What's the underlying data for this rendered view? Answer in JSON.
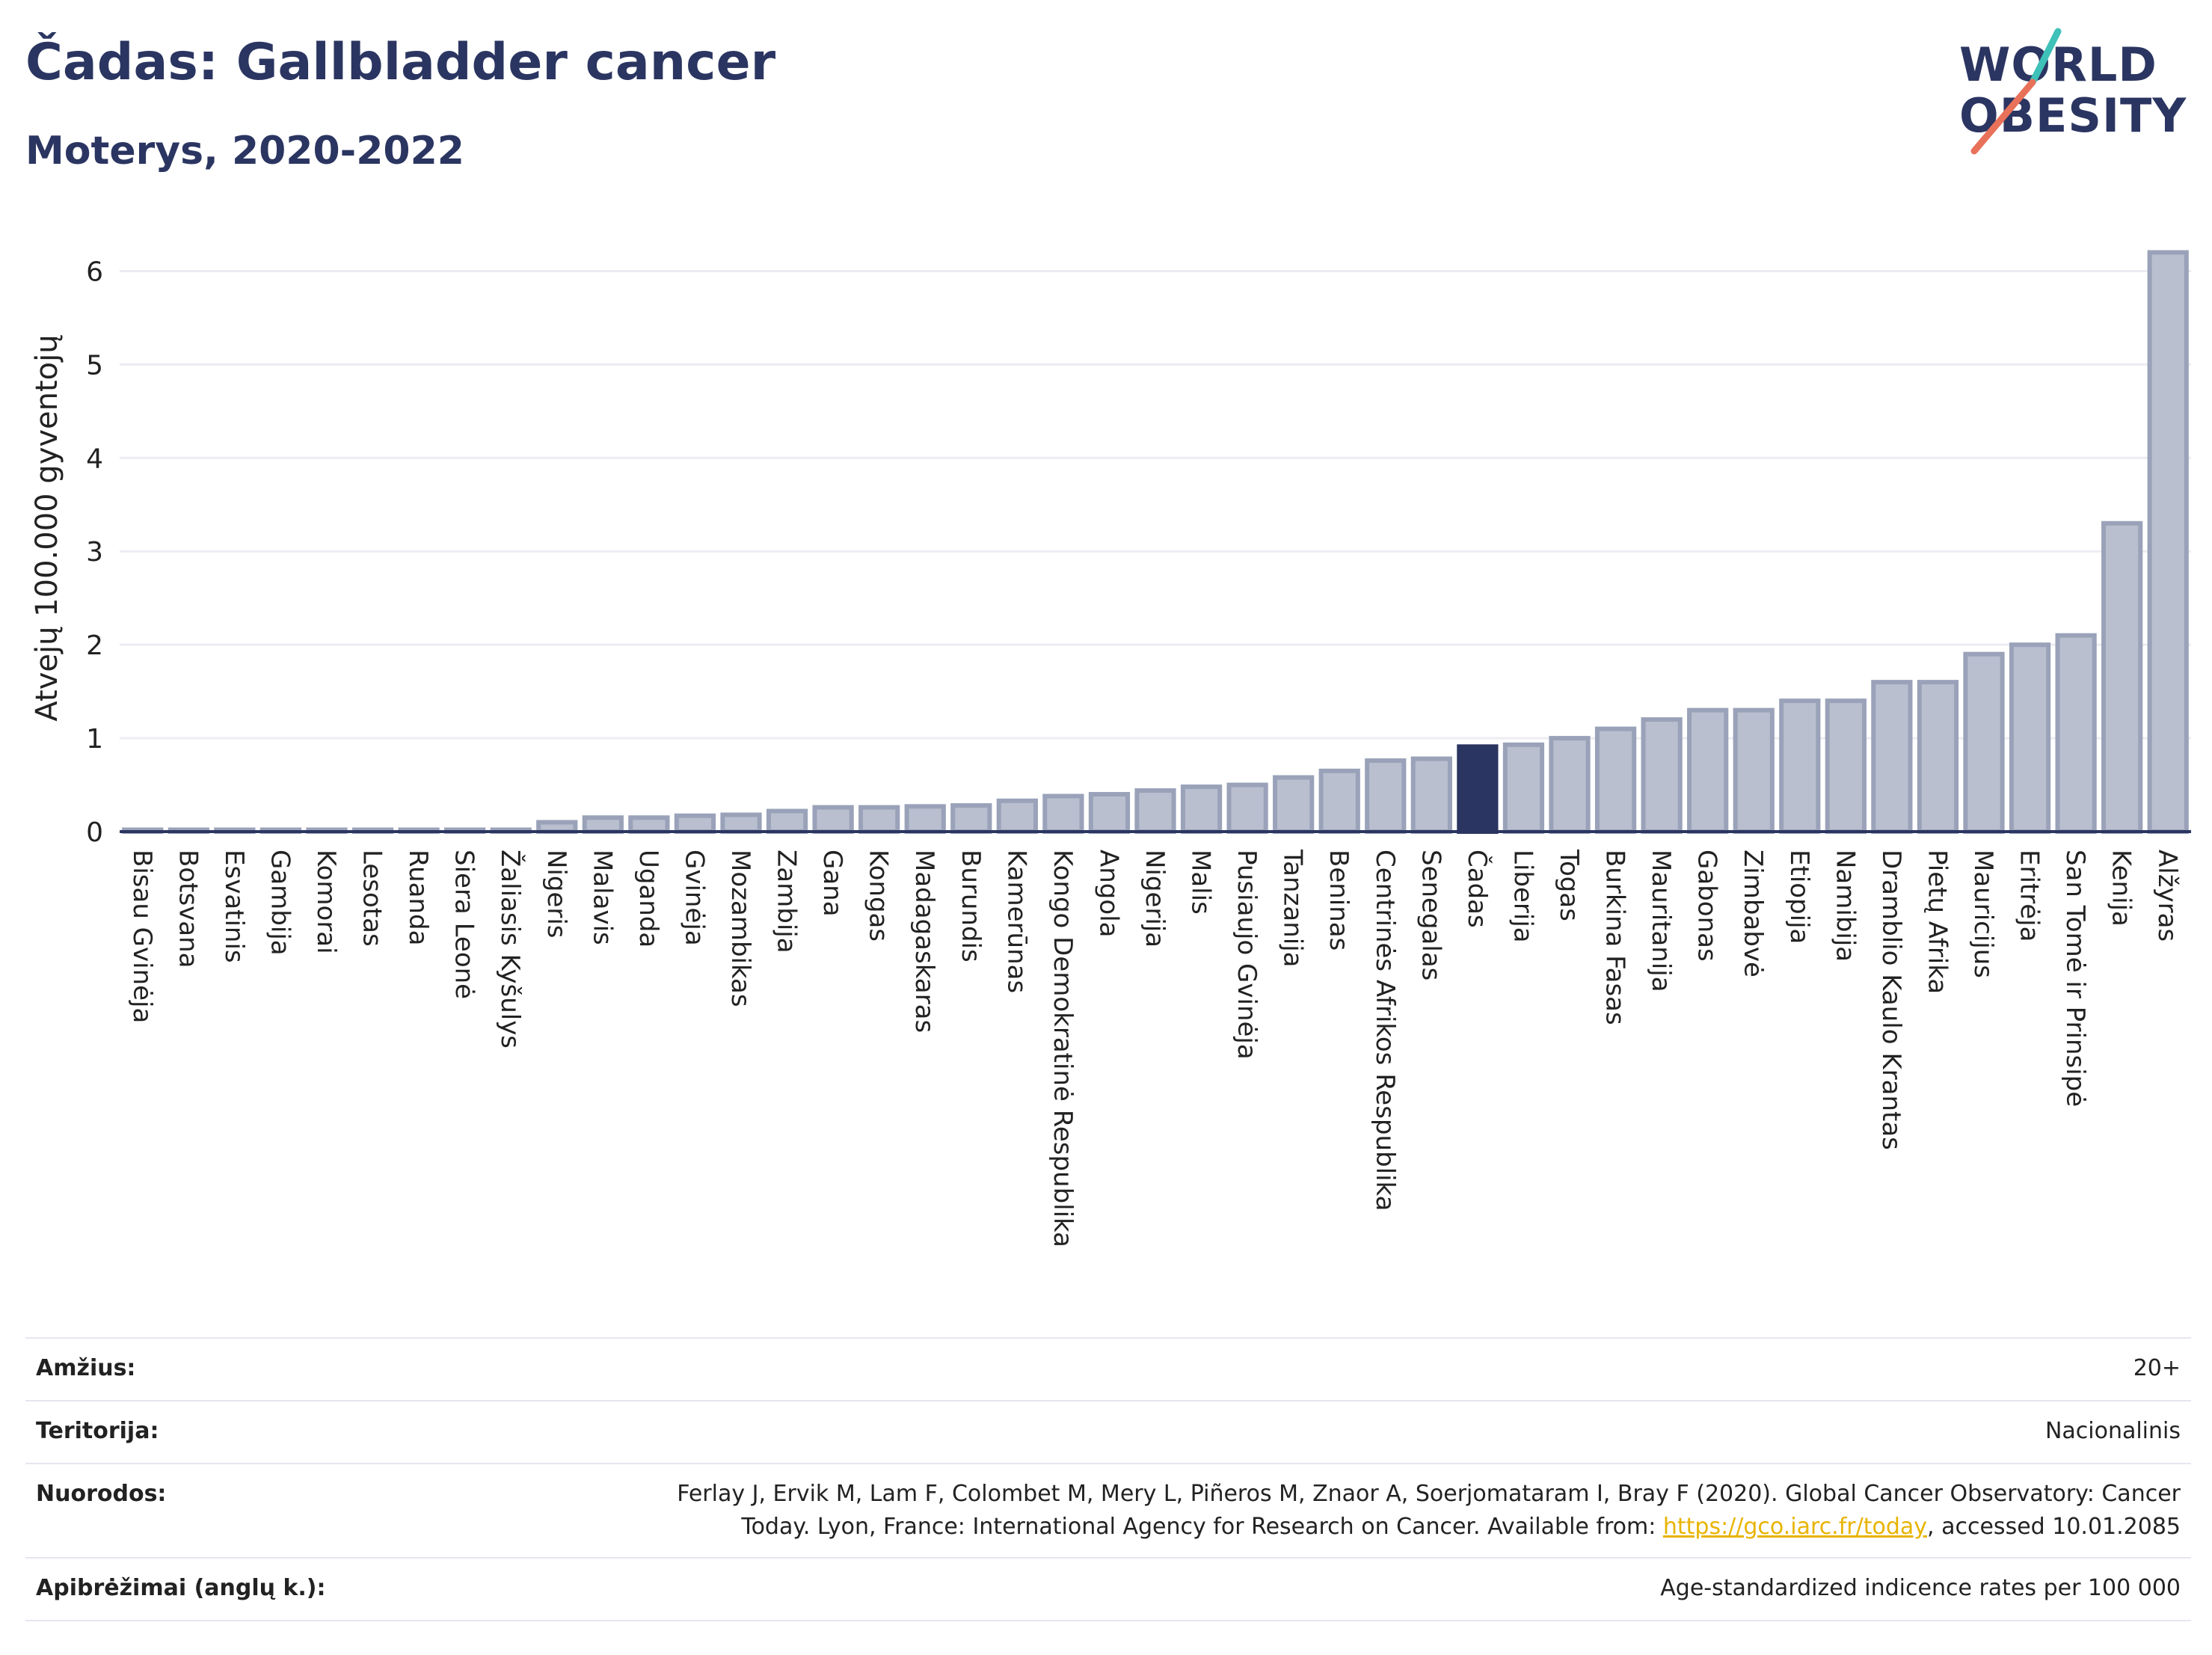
{
  "title": "Čadas: Gallbladder cancer",
  "subtitle": "Moterys, 2020-2022",
  "logo": {
    "line1": "WORLD",
    "line2": "OBESITY",
    "slash_colors": [
      "#3ec1b8",
      "#e8715a"
    ]
  },
  "colors": {
    "bar": "#b9bfcf",
    "bar_stroke": "#9aa2b9",
    "highlight": "#2b3561",
    "grid": "#ececf2",
    "axis": "#2b3561"
  },
  "chart_data": {
    "type": "bar",
    "ylabel": "Atvejų 100.000 gyventojų",
    "ylim": [
      0,
      6.5
    ],
    "yticks": [
      0,
      1,
      2,
      3,
      4,
      5,
      6
    ],
    "grid": true,
    "highlight": "Čadas",
    "categories": [
      "Bisau Gvinėja",
      "Botsvana",
      "Esvatinis",
      "Gambija",
      "Komorai",
      "Lesotas",
      "Ruanda",
      "Siera Leonė",
      "Žaliasis Kyšulys",
      "Nigeris",
      "Malavis",
      "Uganda",
      "Gvinėja",
      "Mozambikas",
      "Zambija",
      "Gana",
      "Kongas",
      "Madagaskaras",
      "Burundis",
      "Kamerūnas",
      "Kongo Demokratinė Respublika",
      "Angola",
      "Nigerija",
      "Malis",
      "Pusiaujo Gvinėja",
      "Tanzanija",
      "Beninas",
      "Centrinės Afrikos Respublika",
      "Senegalas",
      "Čadas",
      "Liberija",
      "Togas",
      "Burkina Fasas",
      "Mauritanija",
      "Gabonas",
      "Zimbabvė",
      "Etiopija",
      "Namibija",
      "Dramblio Kaulo Krantas",
      "Pietų Afrika",
      "Mauricijus",
      "Eritrėja",
      "San Tomė ir Prinsipė",
      "Kenija",
      "Alžyras"
    ],
    "values": [
      0.02,
      0.02,
      0.02,
      0.02,
      0.02,
      0.02,
      0.02,
      0.02,
      0.02,
      0.1,
      0.15,
      0.15,
      0.17,
      0.18,
      0.22,
      0.26,
      0.26,
      0.27,
      0.28,
      0.33,
      0.38,
      0.4,
      0.44,
      0.48,
      0.5,
      0.58,
      0.65,
      0.76,
      0.78,
      0.91,
      0.93,
      1.0,
      1.1,
      1.2,
      1.3,
      1.3,
      1.4,
      1.4,
      1.6,
      1.6,
      1.9,
      2.0,
      2.1,
      3.3,
      6.2
    ]
  },
  "meta": [
    {
      "label": "Amžius:",
      "value": "20+"
    },
    {
      "label": "Teritorija:",
      "value": "Nacionalinis"
    },
    {
      "label": "Nuorodos:",
      "value_line1": "Ferlay J, Ervik M, Lam F, Colombet M, Mery L, Piñeros M, Znaor A, Soerjomataram I, Bray F (2020). Global Cancer Observatory: Cancer",
      "value_line2_pre": "Today. Lyon, France: International Agency for Research on Cancer. Available from: ",
      "link": "https://gco.iarc.fr/today",
      "value_line2_post": ", accessed 10.01.2085"
    },
    {
      "label": "Apibrėžimai (anglų k.):",
      "value": "Age-standardized indicence rates per 100 000"
    }
  ]
}
